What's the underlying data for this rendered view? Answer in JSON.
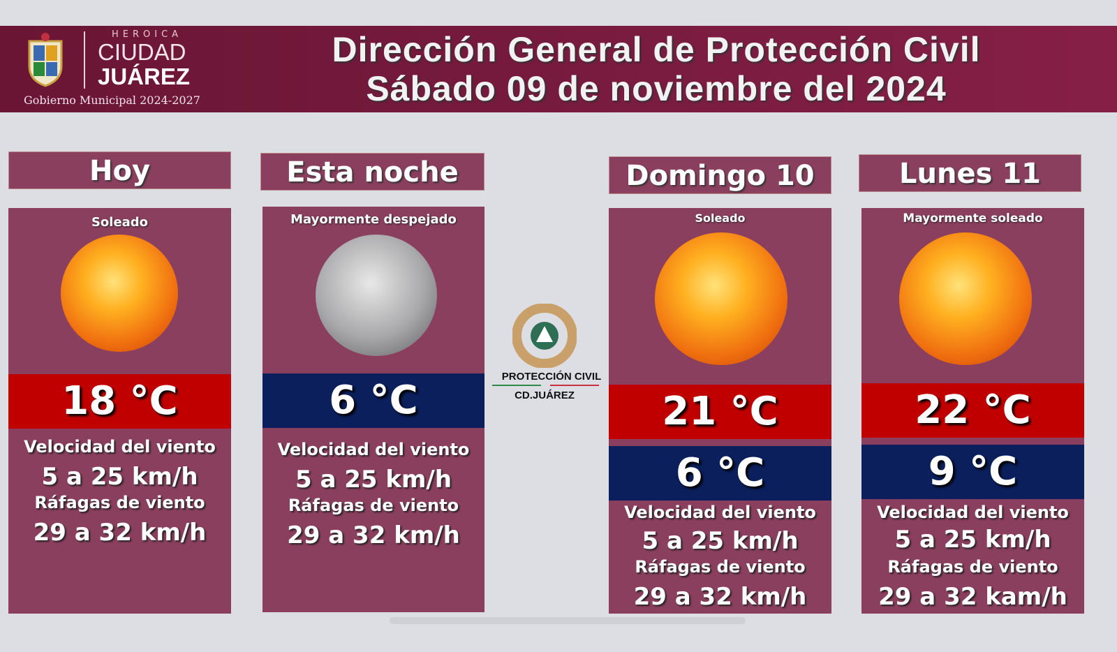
{
  "header": {
    "heroica": "HEROICA",
    "ciudad": "CIUDAD",
    "juarez": "JUÁREZ",
    "gobierno": "Gobierno Municipal 2024-2027",
    "title_line1": "Dirección General de Protección Civil",
    "title_line2": "Sábado 09 de noviembre del 2024"
  },
  "center_logo": {
    "line1": "PROTECCIÓN CIVIL",
    "line2": "CD.JUÁREZ"
  },
  "colors": {
    "header": "#6e1a3c",
    "panel": "#8b3f5e",
    "high_temp": "#c00000",
    "low_temp": "#0b1f5c"
  },
  "forecasts": [
    {
      "label": "Hoy",
      "condition": "Soleado",
      "icon": "sun-icon",
      "high": "18 °C",
      "wind_label": "Velocidad del viento",
      "wind": "5 a 25 km/h",
      "gust_label": "Ráfagas de viento",
      "gust": "29 a 32 km/h"
    },
    {
      "label": "Esta noche",
      "condition": "Mayormente despejado",
      "icon": "moon-icon",
      "low": "6 °C",
      "wind_label": "Velocidad del viento",
      "wind": "5 a 25 km/h",
      "gust_label": "Ráfagas de viento",
      "gust": "29 a 32 km/h"
    },
    {
      "label": "Domingo 10",
      "condition": "Soleado",
      "icon": "sun-icon",
      "high": "21 °C",
      "low": "6 °C",
      "wind_label": "Velocidad del viento",
      "wind": "5 a 25 km/h",
      "gust_label": "Ráfagas de viento",
      "gust": "29 a 32 km/h"
    },
    {
      "label": "Lunes 11",
      "condition": "Mayormente soleado",
      "icon": "sun-icon",
      "high": "22 °C",
      "low": "9 °C",
      "wind_label": "Velocidad del viento",
      "wind": "5 a 25 km/h",
      "gust_label": "Ráfagas de viento",
      "gust": "29 a 32 kam/h"
    }
  ]
}
